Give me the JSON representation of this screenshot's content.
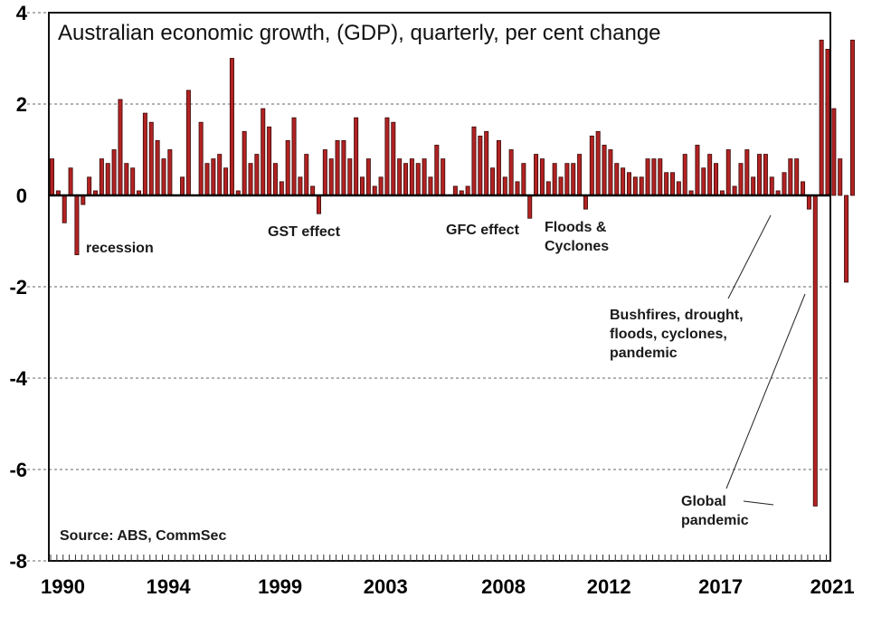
{
  "chart_data": {
    "type": "bar",
    "title": "Australian economic growth, (GDP), quarterly, per cent change",
    "xlabel": "",
    "ylabel": "",
    "ylim": [
      -8,
      4
    ],
    "yticks": [
      4,
      2,
      0,
      -2,
      -4,
      -6,
      -8
    ],
    "ytick_labels": [
      "4",
      "2",
      "0",
      "-2",
      "-4",
      "-6",
      "-8"
    ],
    "grid": "horizontal dashed",
    "bar_color": "#b22222",
    "start": "1990 Q1",
    "frequency": "quarterly",
    "xtick_labels": [
      "1990",
      "1994",
      "1999",
      "2003",
      "2008",
      "2012",
      "2017",
      "2021"
    ],
    "xtick_quarter_index": [
      0,
      17,
      35,
      52,
      71,
      88,
      106,
      124
    ],
    "values": [
      0.8,
      0.1,
      -0.6,
      0.6,
      -1.3,
      -0.2,
      0.4,
      0.1,
      0.8,
      0.7,
      1.0,
      2.1,
      0.7,
      0.6,
      0.1,
      1.8,
      1.6,
      1.2,
      0.8,
      1.0,
      0.0,
      0.4,
      2.3,
      0.0,
      1.6,
      0.7,
      0.8,
      0.9,
      0.6,
      3.0,
      0.1,
      1.4,
      0.7,
      0.9,
      1.9,
      1.5,
      0.7,
      0.3,
      1.2,
      1.7,
      0.4,
      0.9,
      0.2,
      -0.4,
      1.0,
      0.8,
      1.2,
      1.2,
      0.8,
      1.7,
      0.4,
      0.8,
      0.2,
      0.4,
      1.7,
      1.6,
      0.8,
      0.7,
      0.8,
      0.7,
      0.8,
      0.4,
      1.1,
      0.8,
      0.0,
      0.2,
      0.1,
      0.2,
      1.5,
      1.3,
      1.4,
      0.6,
      1.2,
      0.4,
      1.0,
      0.3,
      0.7,
      -0.5,
      0.9,
      0.8,
      0.3,
      0.7,
      0.4,
      0.7,
      0.7,
      0.9,
      -0.3,
      1.3,
      1.4,
      1.1,
      1.0,
      0.7,
      0.6,
      0.5,
      0.4,
      0.4,
      0.8,
      0.8,
      0.8,
      0.5,
      0.5,
      0.3,
      0.9,
      0.1,
      1.1,
      0.6,
      0.9,
      0.7,
      0.1,
      1.0,
      0.2,
      0.7,
      1.0,
      0.4,
      0.9,
      0.9,
      0.4,
      0.1,
      0.5,
      0.8,
      0.8,
      0.3,
      -0.3,
      -6.8,
      3.4,
      3.2,
      1.9,
      0.8,
      -1.9,
      3.4
    ],
    "annotations": [
      {
        "text": "recession",
        "near": "1991"
      },
      {
        "text": "GST effect",
        "near": "2000 Q3"
      },
      {
        "text": "GFC effect",
        "near": "2008 Q4"
      },
      {
        "text": "Floods & Cyclones",
        "near": "2011 Q1"
      },
      {
        "text": "Bushfires, drought, floods, cyclones, pandemic",
        "near": "2020 Q1"
      },
      {
        "text": "Global pandemic",
        "near": "2020 Q2"
      }
    ],
    "source": "Source: ABS, CommSec"
  }
}
